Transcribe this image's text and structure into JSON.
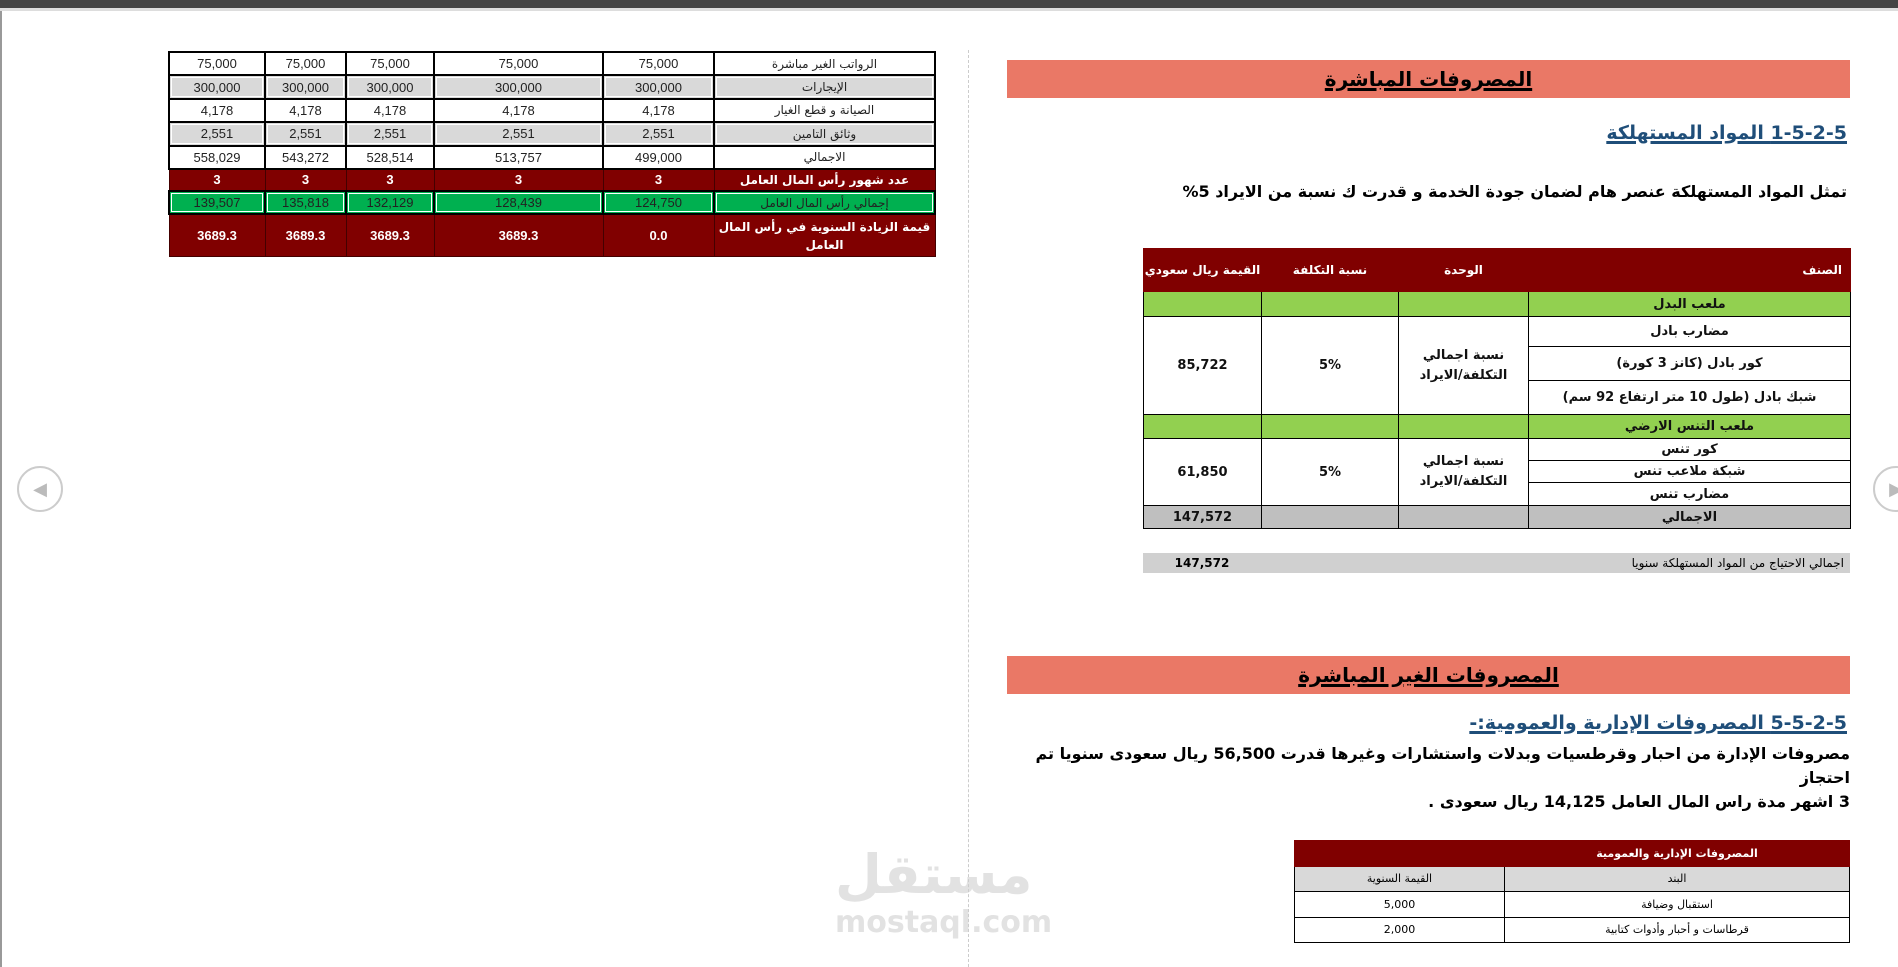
{
  "left_table": {
    "rows": [
      {
        "label": "الرواتب الغير مباشرة",
        "values": [
          "75,000",
          "75,000",
          "75,000",
          "75,000",
          "75,000"
        ]
      },
      {
        "label": "الإيجارات",
        "values": [
          "300,000",
          "300,000",
          "300,000",
          "300,000",
          "300,000"
        ]
      },
      {
        "label": "الصيانة و قطع الغيار",
        "values": [
          "4,178",
          "4,178",
          "4,178",
          "4,178",
          "4,178"
        ]
      },
      {
        "label": "وثائق التامين",
        "values": [
          "2,551",
          "2,551",
          "2,551",
          "2,551",
          "2,551"
        ]
      },
      {
        "label": "الاجمالي",
        "values": [
          "499,000",
          "513,757",
          "528,514",
          "543,272",
          "558,029"
        ]
      },
      {
        "label": "عدد شهور رأس المال العامل",
        "values": [
          "3",
          "3",
          "3",
          "3",
          "3"
        ]
      },
      {
        "label": "إجمالي رأس المال العامل",
        "values": [
          "124,750",
          "128,439",
          "132,129",
          "135,818",
          "139,507"
        ]
      },
      {
        "label": "قيمة الزيادة السنوية في رأس المال العامل",
        "values": [
          "0.0",
          "3689.3",
          "3689.3",
          "3689.3",
          "3689.3"
        ]
      }
    ]
  },
  "direct": {
    "title": "المصروفات المباشرة",
    "heading": "1-5-2-5 المواد المستهلكة",
    "paragraph": "تمثل المواد المستهلكة عنصر  هام لضمان جودة الخدمة و قدرت ك نسبة من الايراد 5%",
    "table": {
      "headers": [
        "الصنف",
        "الوحدة",
        "نسبة التكلفة",
        "القيمة ريال سعودي"
      ],
      "groups": [
        {
          "name": "ملعب البدل",
          "items": [
            "مضارب بادل",
            "كور بادل (كانز 3 كورة)",
            "شبك بادل (طول 10 متر ارتفاع 92 سم)"
          ],
          "unit": "نسبة اجمالي التكلفة/الايراد",
          "ratio": "5%",
          "value": "85,722"
        },
        {
          "name": "ملعب التنس الارضي",
          "items": [
            "كور تنس",
            "شبكة ملاعب تنس",
            "مضارب تنس"
          ],
          "unit": "نسبة اجمالي التكلفة/الايراد",
          "ratio": "5%",
          "value": "61,850"
        }
      ],
      "total_label": "الاجمالي",
      "total_value": "147,572"
    },
    "summary_label": "اجمالي الاحتياج من المواد المستهلكة سنويا",
    "summary_value": "147,572"
  },
  "indirect": {
    "title": "المصروفات الغير المباشرة",
    "heading": "5-5-2-5  المصروفات الإدارية والعمومية:-",
    "paragraph_line1": "مصروفات الإدارة من احبار وقرطسيات وبدلات واستشارات وغيرها قدرت    56,500 ريال سعودى  سنويا تم احتجاز",
    "paragraph_line2": "3 اشهر مدة راس المال العامل  14,125  ريال سعودى .",
    "table": {
      "title": "المصروفات الإدارية والعمومية",
      "col_item": "البند",
      "col_value": "القيمة السنوية",
      "rows": [
        {
          "item": "استقبال وضيافة",
          "value": "5,000"
        },
        {
          "item": "قرطاسات و أحبار وأدوات كتابية",
          "value": "2,000"
        }
      ]
    }
  },
  "watermark": {
    "text_ar": "مستقل",
    "text_en": "mostaql.com"
  },
  "colors": {
    "title_bar": "#ea7866",
    "header_red": "#800000",
    "section_green": "#92d050",
    "green_row": "#00b050",
    "heading_blue": "#1f4e79"
  }
}
